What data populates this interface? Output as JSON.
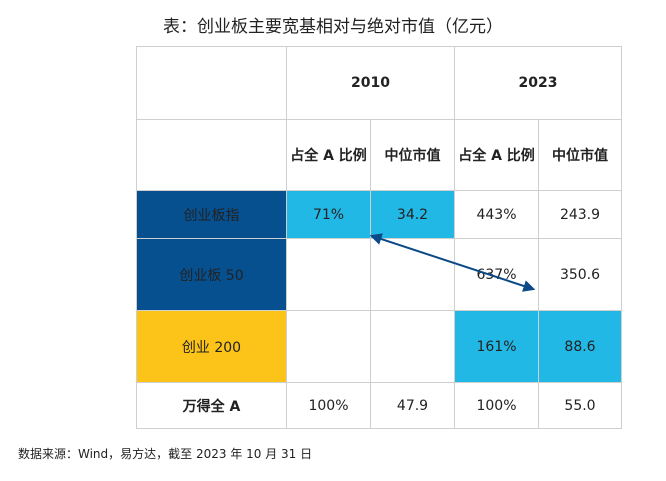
{
  "title": "表：创业板主要宽基相对与绝对市值（亿元）",
  "table": {
    "year_headers": [
      "2010",
      "2023"
    ],
    "sub_headers": [
      "占全 A 比例",
      "中位市值",
      "占全 A 比例",
      "中位市值"
    ],
    "rows": [
      {
        "name": "创业板指",
        "cells": [
          "71%",
          "34.2",
          "443%",
          "243.9"
        ],
        "name_bg": "#06508f",
        "highlight_2010": true,
        "highlight_2023": false
      },
      {
        "name": "创业板 50",
        "cells": [
          "",
          "",
          "637%",
          "350.6"
        ],
        "name_bg": "#06508f",
        "highlight_2010": false,
        "highlight_2023": false
      },
      {
        "name": "创业 200",
        "cells": [
          "",
          "",
          "161%",
          "88.6"
        ],
        "name_bg": "#fcc419",
        "highlight_2010": false,
        "highlight_2023": true
      },
      {
        "name": "万得全 A",
        "cells": [
          "100%",
          "47.9",
          "100%",
          "55.0"
        ],
        "name_bg": "#ffffff",
        "highlight_2010": false,
        "highlight_2023": false
      }
    ]
  },
  "colors": {
    "highlight": "#22b8e6",
    "navy": "#06508f",
    "yellow": "#fcc419",
    "arrow": "#0b4a86"
  },
  "source": "数据来源：Wind，易方达，截至 2023 年 10 月 31 日"
}
